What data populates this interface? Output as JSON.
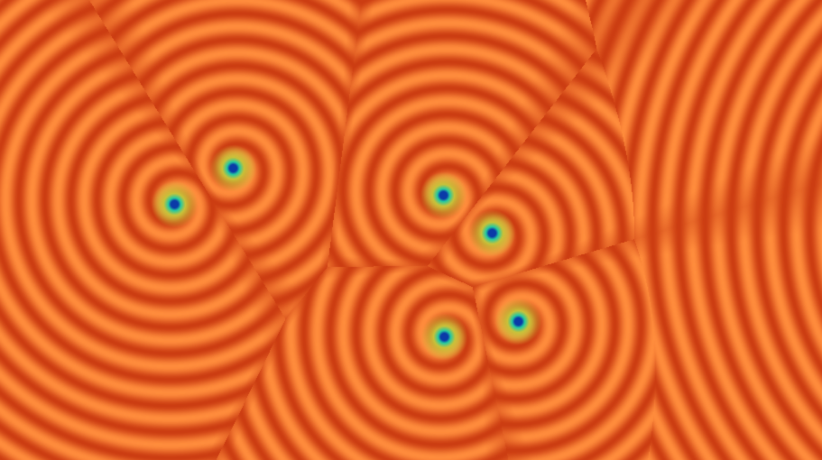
{
  "image": {
    "subject": "spiral-wave-pattern",
    "spiral_core_count": 6,
    "colors": {
      "ridge": "#ff8c3c",
      "trough": "#cc3d12",
      "core_glow": "#c8c23a",
      "core_ring": "#25c9a0",
      "core_center": "#0a3aa8"
    }
  }
}
